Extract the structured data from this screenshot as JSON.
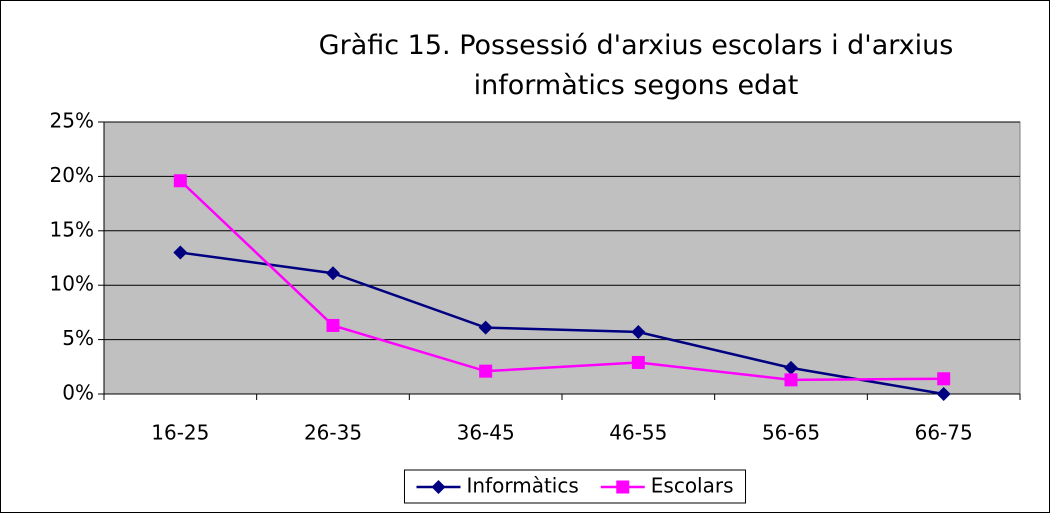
{
  "chart_data": {
    "type": "line",
    "title": "Gràfic 15. Possessió d'arxius escolars i d'arxius informàtics segons edat",
    "categories": [
      "16-25",
      "26-35",
      "36-45",
      "46-55",
      "56-65",
      "66-75"
    ],
    "series": [
      {
        "name": "Informàtics",
        "color": "#000080",
        "marker": "diamond",
        "values": [
          13,
          11.1,
          6.1,
          5.7,
          2.4,
          0
        ]
      },
      {
        "name": "Escolars",
        "color": "#ff00ff",
        "marker": "square",
        "values": [
          19.6,
          6.3,
          2.1,
          2.9,
          1.3,
          1.4
        ]
      }
    ],
    "ylim": [
      0,
      25
    ],
    "yticks": [
      {
        "value": 0,
        "label": "0%"
      },
      {
        "value": 5,
        "label": "5%"
      },
      {
        "value": 10,
        "label": "10%"
      },
      {
        "value": 15,
        "label": "15%"
      },
      {
        "value": 20,
        "label": "20%"
      },
      {
        "value": 25,
        "label": "25%"
      }
    ],
    "grid": true,
    "legend": "bottom",
    "plot_background": "#c0c0c0"
  }
}
